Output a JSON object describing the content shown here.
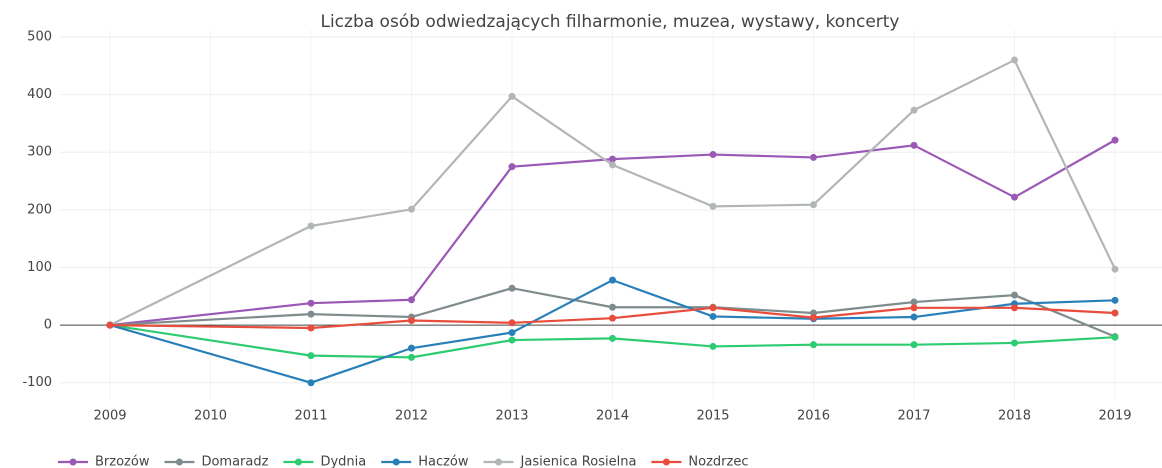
{
  "chart_data": {
    "type": "line",
    "title": "Liczba osób odwiedzających filharmonie, muzea, wystawy, koncerty",
    "x": [
      2009,
      2011,
      2012,
      2013,
      2014,
      2015,
      2016,
      2017,
      2018,
      2019
    ],
    "xlim": [
      2009,
      2019
    ],
    "xticks": [
      2009,
      2010,
      2011,
      2012,
      2013,
      2014,
      2015,
      2016,
      2017,
      2018,
      2019
    ],
    "ylim": [
      -130,
      500
    ],
    "yticks": [
      -100,
      0,
      100,
      200,
      300,
      400,
      500
    ],
    "grid": true,
    "legend": "bottom",
    "series": [
      {
        "name": "Brzozów",
        "color": "#9b59b6",
        "values": [
          0,
          38,
          44,
          275,
          288,
          296,
          291,
          312,
          222,
          321
        ]
      },
      {
        "name": "Domaradz",
        "color": "#7f8c8d",
        "values": [
          0,
          19,
          14,
          64,
          31,
          31,
          21,
          40,
          52,
          -20
        ]
      },
      {
        "name": "Dydnia",
        "color": "#2ecc71",
        "values": [
          0,
          -53,
          -56,
          -26,
          -23,
          -37,
          -34,
          -34,
          -31,
          -21
        ]
      },
      {
        "name": "Haczów",
        "color": "#2980b9",
        "values": [
          0,
          -100,
          -40,
          -13,
          78,
          15,
          11,
          14,
          37,
          43
        ]
      },
      {
        "name": "Jasienica Rosielna",
        "color": "#b3b6b7",
        "values": [
          0,
          172,
          201,
          397,
          278,
          206,
          209,
          373,
          460,
          97
        ]
      },
      {
        "name": "Nozdrzec",
        "color": "#e74c3c",
        "values": [
          0,
          -5,
          8,
          4,
          12,
          30,
          13,
          30,
          30,
          21
        ]
      }
    ]
  }
}
